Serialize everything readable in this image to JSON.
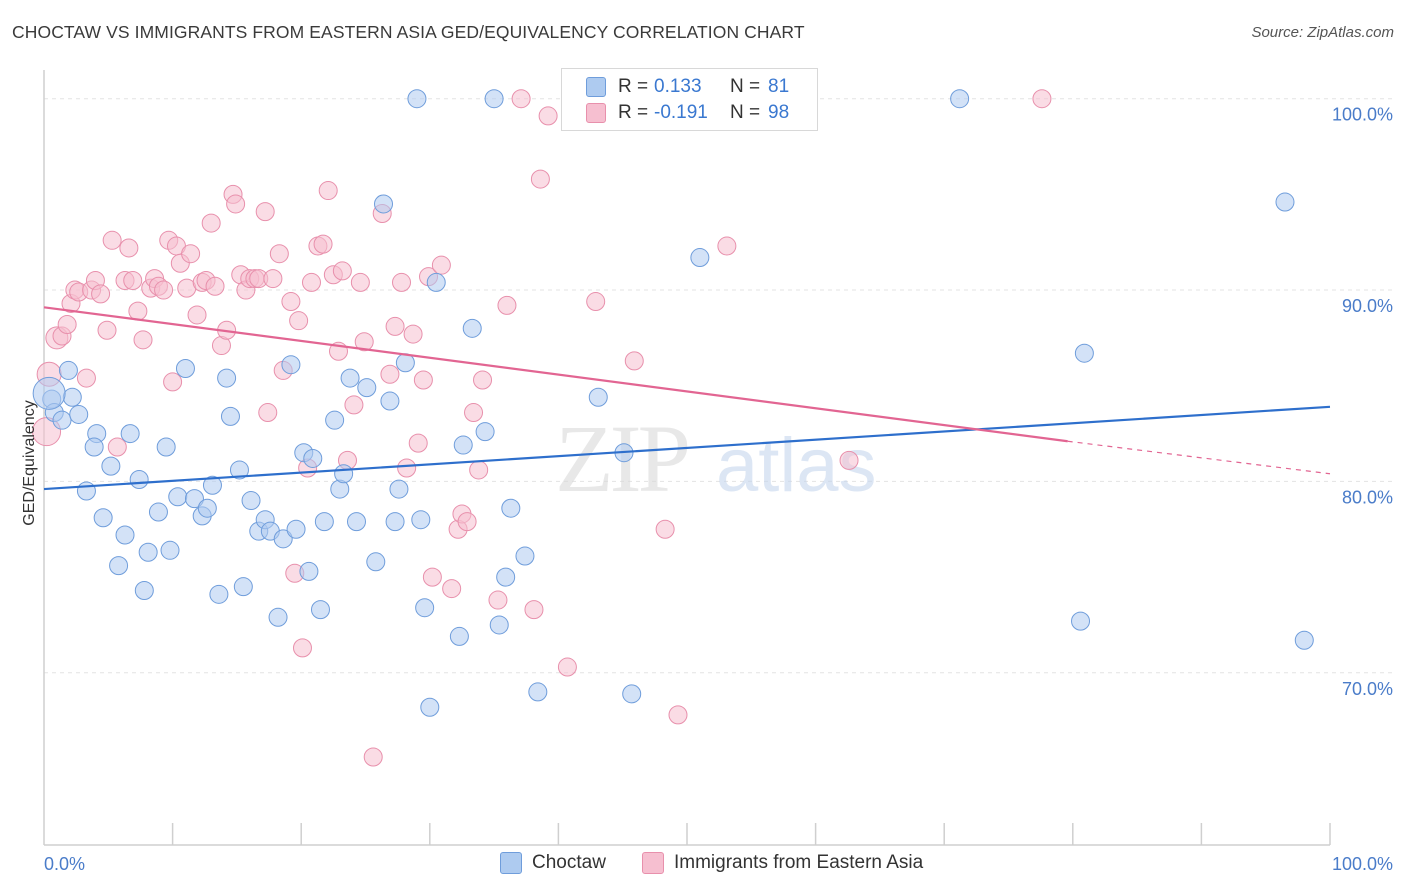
{
  "title": "CHOCTAW VS IMMIGRANTS FROM EASTERN ASIA GED/EQUIVALENCY CORRELATION CHART",
  "source": "Source: ZipAtlas.com",
  "watermark": {
    "zip": "ZIP",
    "atlas": "atlas"
  },
  "legend": {
    "r_label": "R =",
    "n_label": "N =",
    "rows": [
      {
        "r": "0.133",
        "n": "81"
      },
      {
        "r": "-0.191",
        "n": "98"
      }
    ]
  },
  "bottom_legend": [
    "Choctaw",
    "Immigrants from Eastern Asia"
  ],
  "colors": {
    "series1_fill": "#aecbf0",
    "series1_stroke": "#6f9ddb",
    "series1_line": "#2e6fcc",
    "series2_fill": "#f6bfd0",
    "series2_stroke": "#e890ac",
    "series2_line": "#e26592",
    "tick_text": "#4a7cc9",
    "grid": "#e3e3e3"
  },
  "chart_data": {
    "type": "scatter",
    "xlabel": "",
    "ylabel": "GED/Equivalency",
    "xlim": [
      0,
      100
    ],
    "ylim": [
      61,
      101.5
    ],
    "x_ticks": [
      "0.0%",
      "100.0%"
    ],
    "y_ticks": [
      {
        "value": 100,
        "label": "100.0%"
      },
      {
        "value": 90,
        "label": "90.0%"
      },
      {
        "value": 80,
        "label": "80.0%"
      },
      {
        "value": 70,
        "label": "70.0%"
      }
    ],
    "grid": "horizontal dashed",
    "series": [
      {
        "name": "Choctaw",
        "trend": {
          "x": [
            0,
            100
          ],
          "y": [
            79.6,
            83.9
          ],
          "dashed_from": null
        },
        "points": [
          [
            0.6,
            84.3
          ],
          [
            0.8,
            83.6
          ],
          [
            1.4,
            83.2
          ],
          [
            1.9,
            85.8
          ],
          [
            2.2,
            84.4
          ],
          [
            2.7,
            83.5
          ],
          [
            3.3,
            79.5
          ],
          [
            4.1,
            82.5
          ],
          [
            3.9,
            81.8
          ],
          [
            4.6,
            78.1
          ],
          [
            5.2,
            80.8
          ],
          [
            5.8,
            75.6
          ],
          [
            6.3,
            77.2
          ],
          [
            6.7,
            82.5
          ],
          [
            7.4,
            80.1
          ],
          [
            7.8,
            74.3
          ],
          [
            8.1,
            76.3
          ],
          [
            8.9,
            78.4
          ],
          [
            9.5,
            81.8
          ],
          [
            9.8,
            76.4
          ],
          [
            10.4,
            79.2
          ],
          [
            11.0,
            85.9
          ],
          [
            11.7,
            79.1
          ],
          [
            12.3,
            78.2
          ],
          [
            12.7,
            78.6
          ],
          [
            13.1,
            79.8
          ],
          [
            13.6,
            74.1
          ],
          [
            14.2,
            85.4
          ],
          [
            14.5,
            83.4
          ],
          [
            15.2,
            80.6
          ],
          [
            15.5,
            74.5
          ],
          [
            16.1,
            79.0
          ],
          [
            16.7,
            77.4
          ],
          [
            17.2,
            78.0
          ],
          [
            17.6,
            77.4
          ],
          [
            18.2,
            72.9
          ],
          [
            18.6,
            77.0
          ],
          [
            19.2,
            86.1
          ],
          [
            19.6,
            77.5
          ],
          [
            20.2,
            81.5
          ],
          [
            20.6,
            75.3
          ],
          [
            20.9,
            81.2
          ],
          [
            21.5,
            73.3
          ],
          [
            21.8,
            77.9
          ],
          [
            22.6,
            83.2
          ],
          [
            23.0,
            79.6
          ],
          [
            23.3,
            80.4
          ],
          [
            23.8,
            85.4
          ],
          [
            24.3,
            77.9
          ],
          [
            25.1,
            84.9
          ],
          [
            25.8,
            75.8
          ],
          [
            26.4,
            94.5
          ],
          [
            26.9,
            84.2
          ],
          [
            27.3,
            77.9
          ],
          [
            27.6,
            79.6
          ],
          [
            28.1,
            86.2
          ],
          [
            29.0,
            100.0
          ],
          [
            29.3,
            78.0
          ],
          [
            29.6,
            73.4
          ],
          [
            30.0,
            68.2
          ],
          [
            30.5,
            90.4
          ],
          [
            32.3,
            71.9
          ],
          [
            32.6,
            81.9
          ],
          [
            33.3,
            88.0
          ],
          [
            34.3,
            82.6
          ],
          [
            35.0,
            100.0
          ],
          [
            35.4,
            72.5
          ],
          [
            35.9,
            75.0
          ],
          [
            36.3,
            78.6
          ],
          [
            37.4,
            76.1
          ],
          [
            38.4,
            69.0
          ],
          [
            43.1,
            84.4
          ],
          [
            45.1,
            81.5
          ],
          [
            45.7,
            68.9
          ],
          [
            51.0,
            91.7
          ],
          [
            71.2,
            100.0
          ],
          [
            80.6,
            72.7
          ],
          [
            80.9,
            86.7
          ],
          [
            96.5,
            94.6
          ],
          [
            98.0,
            71.7
          ],
          [
            0.4,
            84.6
          ]
        ]
      },
      {
        "name": "Immigrants from Eastern Asia",
        "trend": {
          "x": [
            0,
            79.6
          ],
          "y": [
            89.1,
            82.1
          ],
          "dashed_from": 79.6,
          "dashed_to_y": 80.4
        },
        "points": [
          [
            0.2,
            82.6
          ],
          [
            0.4,
            85.6
          ],
          [
            1.0,
            87.5
          ],
          [
            1.4,
            87.6
          ],
          [
            1.8,
            88.2
          ],
          [
            2.1,
            89.3
          ],
          [
            2.4,
            90.0
          ],
          [
            2.7,
            89.9
          ],
          [
            3.3,
            85.4
          ],
          [
            3.7,
            90.0
          ],
          [
            4.0,
            90.5
          ],
          [
            4.4,
            89.8
          ],
          [
            4.9,
            87.9
          ],
          [
            5.3,
            92.6
          ],
          [
            5.7,
            81.8
          ],
          [
            6.3,
            90.5
          ],
          [
            6.6,
            92.2
          ],
          [
            6.9,
            90.5
          ],
          [
            7.3,
            88.9
          ],
          [
            7.7,
            87.4
          ],
          [
            8.3,
            90.1
          ],
          [
            8.6,
            90.6
          ],
          [
            8.9,
            90.2
          ],
          [
            9.3,
            90.0
          ],
          [
            9.7,
            92.6
          ],
          [
            10.0,
            85.2
          ],
          [
            10.3,
            92.3
          ],
          [
            10.6,
            91.4
          ],
          [
            11.1,
            90.1
          ],
          [
            11.4,
            91.9
          ],
          [
            11.9,
            88.7
          ],
          [
            12.3,
            90.4
          ],
          [
            12.6,
            90.5
          ],
          [
            13.0,
            93.5
          ],
          [
            13.3,
            90.2
          ],
          [
            13.8,
            87.1
          ],
          [
            14.2,
            87.9
          ],
          [
            14.7,
            95.0
          ],
          [
            14.9,
            94.5
          ],
          [
            15.3,
            90.8
          ],
          [
            15.7,
            90.0
          ],
          [
            16.0,
            90.6
          ],
          [
            16.4,
            90.6
          ],
          [
            16.7,
            90.6
          ],
          [
            17.2,
            94.1
          ],
          [
            17.4,
            83.6
          ],
          [
            17.8,
            90.6
          ],
          [
            18.3,
            91.9
          ],
          [
            18.6,
            85.8
          ],
          [
            19.2,
            89.4
          ],
          [
            19.5,
            75.2
          ],
          [
            19.8,
            88.4
          ],
          [
            20.1,
            71.3
          ],
          [
            20.5,
            80.7
          ],
          [
            20.8,
            90.4
          ],
          [
            21.3,
            92.3
          ],
          [
            21.7,
            92.4
          ],
          [
            22.1,
            95.2
          ],
          [
            22.5,
            90.8
          ],
          [
            22.9,
            86.8
          ],
          [
            23.2,
            91.0
          ],
          [
            23.6,
            81.1
          ],
          [
            24.1,
            84.0
          ],
          [
            24.6,
            90.4
          ],
          [
            24.9,
            87.3
          ],
          [
            25.6,
            65.6
          ],
          [
            26.3,
            94.0
          ],
          [
            26.9,
            85.6
          ],
          [
            27.3,
            88.1
          ],
          [
            27.8,
            90.4
          ],
          [
            28.2,
            80.7
          ],
          [
            28.7,
            87.7
          ],
          [
            29.1,
            82.0
          ],
          [
            29.5,
            85.3
          ],
          [
            29.9,
            90.7
          ],
          [
            30.2,
            75.0
          ],
          [
            30.9,
            91.3
          ],
          [
            31.7,
            74.4
          ],
          [
            32.2,
            77.5
          ],
          [
            32.5,
            78.3
          ],
          [
            32.9,
            77.9
          ],
          [
            33.4,
            83.6
          ],
          [
            33.8,
            80.6
          ],
          [
            34.1,
            85.3
          ],
          [
            35.3,
            73.8
          ],
          [
            36.0,
            89.2
          ],
          [
            37.1,
            100.0
          ],
          [
            38.1,
            73.3
          ],
          [
            38.6,
            95.8
          ],
          [
            39.2,
            99.1
          ],
          [
            40.7,
            70.3
          ],
          [
            42.9,
            89.4
          ],
          [
            45.9,
            86.3
          ],
          [
            48.3,
            77.5
          ],
          [
            49.3,
            67.8
          ],
          [
            53.1,
            92.3
          ],
          [
            62.6,
            81.1
          ],
          [
            77.6,
            100.0
          ]
        ]
      }
    ]
  }
}
